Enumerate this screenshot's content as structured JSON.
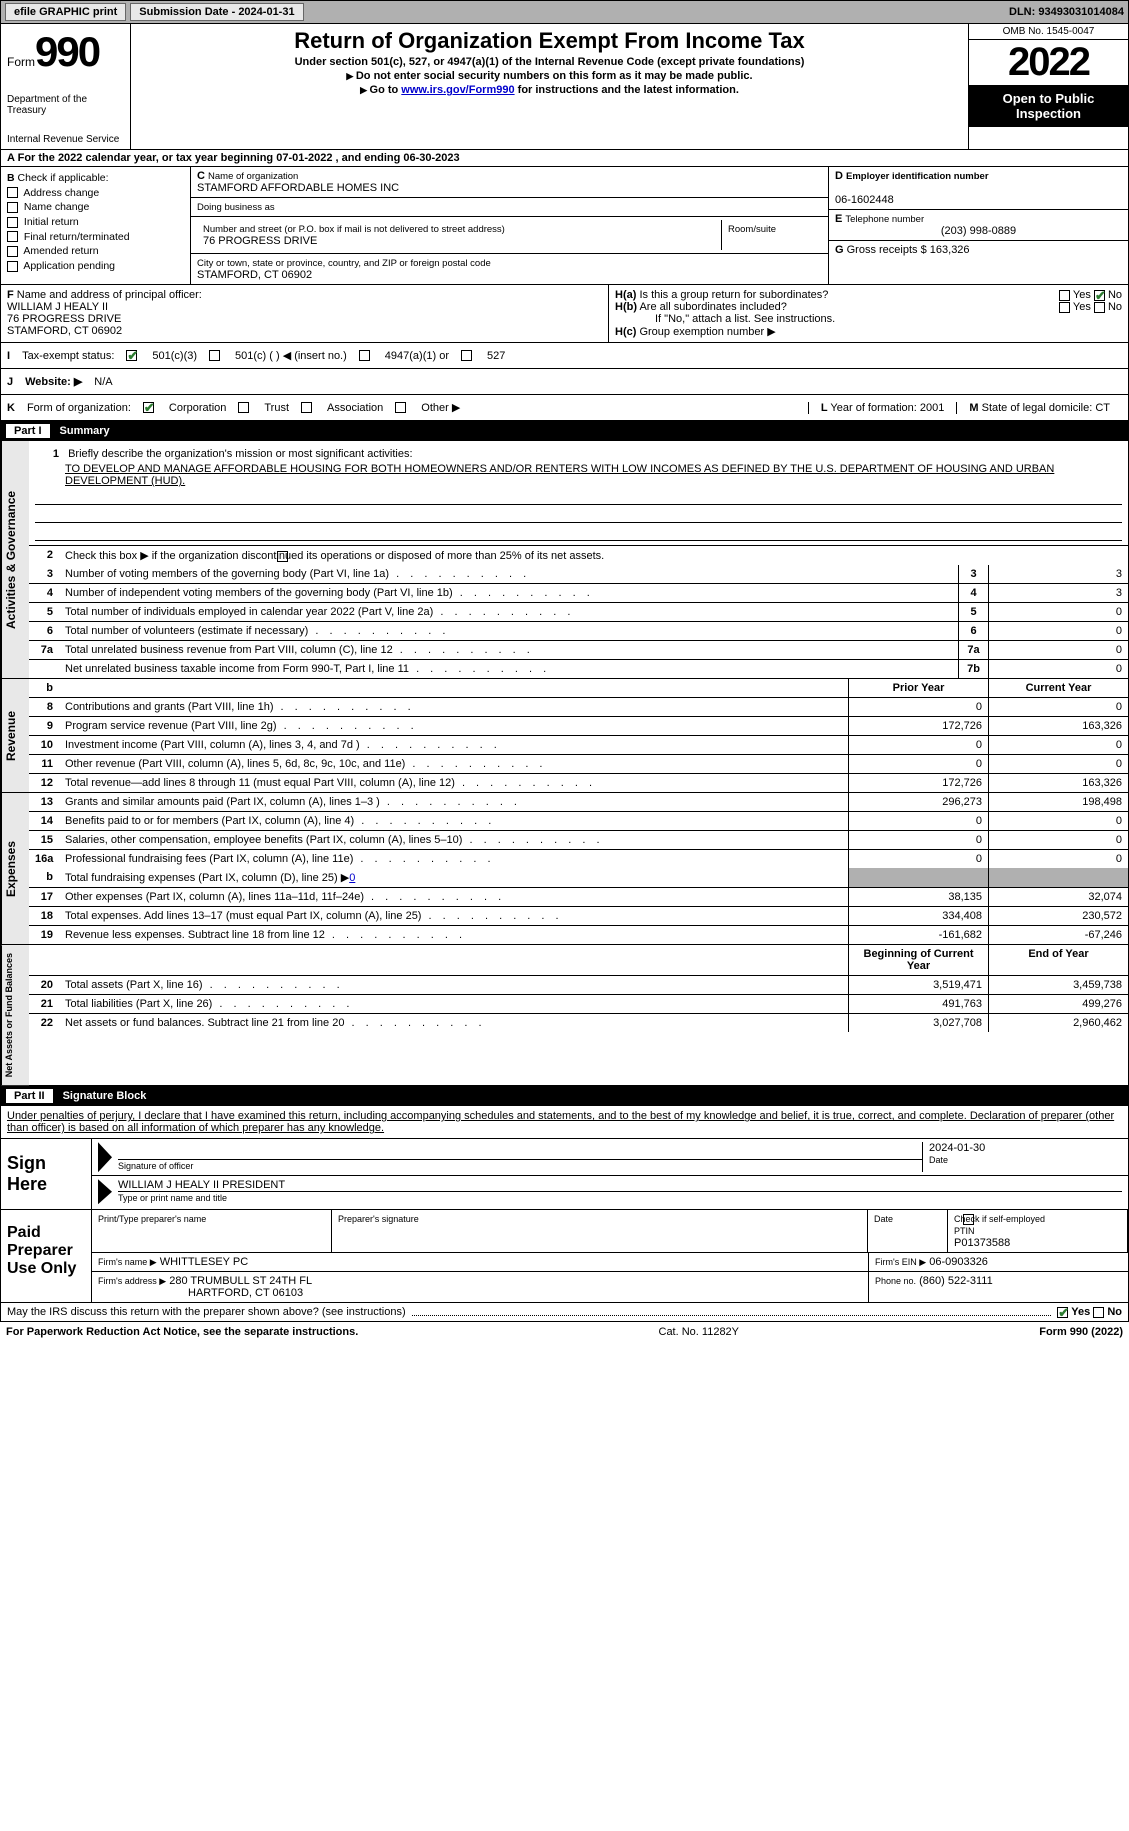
{
  "topbar": {
    "efile": "efile GRAPHIC print",
    "submission": "Submission Date - 2024-01-31",
    "dln": "DLN: 93493031014084"
  },
  "header": {
    "form_word": "Form",
    "form_num": "990",
    "dept": "Department of the Treasury",
    "irs": "Internal Revenue Service",
    "title": "Return of Organization Exempt From Income Tax",
    "sub1": "Under section 501(c), 527, or 4947(a)(1) of the Internal Revenue Code (except private foundations)",
    "sub2": "Do not enter social security numbers on this form as it may be made public.",
    "sub3_pre": "Go to ",
    "sub3_link": "www.irs.gov/Form990",
    "sub3_post": " for instructions and the latest information.",
    "omb": "OMB No. 1545-0047",
    "year": "2022",
    "open": "Open to Public Inspection"
  },
  "rowA": {
    "a": "A",
    "text": "For the 2022 calendar year, or tax year beginning 07-01-2022     , and ending 06-30-2023"
  },
  "secB": {
    "b": "B",
    "check_label": "Check if applicable:",
    "items": [
      "Address change",
      "Name change",
      "Initial return",
      "Final return/terminated",
      "Amended return",
      "Application pending"
    ],
    "c": "C",
    "name_lbl": "Name of organization",
    "name_val": "STAMFORD AFFORDABLE HOMES INC",
    "dba_lbl": "Doing business as",
    "dba_val": "",
    "street_lbl": "Number and street (or P.O. box if mail is not delivered to street address)",
    "street_val": "76 PROGRESS DRIVE",
    "room_lbl": "Room/suite",
    "city_lbl": "City or town, state or province, country, and ZIP or foreign postal code",
    "city_val": "STAMFORD, CT  06902",
    "d": "D",
    "ein_lbl": "Employer identification number",
    "ein_val": "06-1602448",
    "e": "E",
    "tel_lbl": "Telephone number",
    "tel_val": "(203) 998-0889",
    "g": "G",
    "gross_lbl": "Gross receipts $",
    "gross_val": "163,326"
  },
  "secF": {
    "f": "F",
    "officer_lbl": "Name and address of principal officer:",
    "officer_name": "WILLIAM J HEALY II",
    "officer_addr1": "76 PROGRESS DRIVE",
    "officer_addr2": "STAMFORD, CT  06902",
    "ha": "H(a)",
    "ha_text": "Is this a group return for subordinates?",
    "hb": "H(b)",
    "hb_text": "Are all subordinates included?",
    "hb_note": "If \"No,\" attach a list. See instructions.",
    "hc": "H(c)",
    "hc_text": "Group exemption number ▶",
    "yes": "Yes",
    "no": "No"
  },
  "lineI": {
    "i": "I",
    "label": "Tax-exempt status:",
    "o1": "501(c)(3)",
    "o2": "501(c) (  ) ◀ (insert no.)",
    "o3": "4947(a)(1) or",
    "o4": "527"
  },
  "lineJ": {
    "j": "J",
    "label": "Website: ▶",
    "val": "N/A"
  },
  "lineK": {
    "k": "K",
    "label": "Form of organization:",
    "o1": "Corporation",
    "o2": "Trust",
    "o3": "Association",
    "o4": "Other ▶",
    "l": "L",
    "l_text": "Year of formation: 2001",
    "m": "M",
    "m_text": "State of legal domicile: CT"
  },
  "part1": {
    "num": "Part I",
    "title": "Summary"
  },
  "tabs": {
    "gov": "Activities & Governance",
    "rev": "Revenue",
    "exp": "Expenses",
    "net": "Net Assets or Fund Balances"
  },
  "s1": {
    "num": "1",
    "lbl": "Briefly describe the organization's mission or most significant activities:",
    "text": "TO DEVELOP AND MANAGE AFFORDABLE HOUSING FOR BOTH HOMEOWNERS AND/OR RENTERS WITH LOW INCOMES AS DEFINED BY THE U.S. DEPARTMENT OF HOUSING AND URBAN DEVELOPMENT (HUD)."
  },
  "s2": {
    "num": "2",
    "lbl": "Check this box ▶       if the organization discontinued its operations or disposed of more than 25% of its net assets."
  },
  "govRows": [
    {
      "n": "3",
      "d": "Number of voting members of the governing body (Part VI, line 1a)",
      "b": "3",
      "v": "3"
    },
    {
      "n": "4",
      "d": "Number of independent voting members of the governing body (Part VI, line 1b)",
      "b": "4",
      "v": "3"
    },
    {
      "n": "5",
      "d": "Total number of individuals employed in calendar year 2022 (Part V, line 2a)",
      "b": "5",
      "v": "0"
    },
    {
      "n": "6",
      "d": "Total number of volunteers (estimate if necessary)",
      "b": "6",
      "v": "0"
    },
    {
      "n": "7a",
      "d": "Total unrelated business revenue from Part VIII, column (C), line 12",
      "b": "7a",
      "v": "0"
    },
    {
      "n": "",
      "d": "Net unrelated business taxable income from Form 990-T, Part I, line 11",
      "b": "7b",
      "v": "0"
    }
  ],
  "colHdr": {
    "b": "b",
    "prior": "Prior Year",
    "current": "Current Year",
    "begin": "Beginning of Current Year",
    "end": "End of Year"
  },
  "revRows": [
    {
      "n": "8",
      "d": "Contributions and grants (Part VIII, line 1h)",
      "p": "0",
      "c": "0"
    },
    {
      "n": "9",
      "d": "Program service revenue (Part VIII, line 2g)",
      "p": "172,726",
      "c": "163,326"
    },
    {
      "n": "10",
      "d": "Investment income (Part VIII, column (A), lines 3, 4, and 7d )",
      "p": "0",
      "c": "0"
    },
    {
      "n": "11",
      "d": "Other revenue (Part VIII, column (A), lines 5, 6d, 8c, 9c, 10c, and 11e)",
      "p": "0",
      "c": "0"
    },
    {
      "n": "12",
      "d": "Total revenue—add lines 8 through 11 (must equal Part VIII, column (A), line 12)",
      "p": "172,726",
      "c": "163,326"
    }
  ],
  "expRows": [
    {
      "n": "13",
      "d": "Grants and similar amounts paid (Part IX, column (A), lines 1–3 )",
      "p": "296,273",
      "c": "198,498"
    },
    {
      "n": "14",
      "d": "Benefits paid to or for members (Part IX, column (A), line 4)",
      "p": "0",
      "c": "0"
    },
    {
      "n": "15",
      "d": "Salaries, other compensation, employee benefits (Part IX, column (A), lines 5–10)",
      "p": "0",
      "c": "0"
    },
    {
      "n": "16a",
      "d": "Professional fundraising fees (Part IX, column (A), line 11e)",
      "p": "0",
      "c": "0"
    }
  ],
  "exp16b": {
    "n": "b",
    "d": "Total fundraising expenses (Part IX, column (D), line 25) ▶",
    "v": "0"
  },
  "expRows2": [
    {
      "n": "17",
      "d": "Other expenses (Part IX, column (A), lines 11a–11d, 11f–24e)",
      "p": "38,135",
      "c": "32,074"
    },
    {
      "n": "18",
      "d": "Total expenses. Add lines 13–17 (must equal Part IX, column (A), line 25)",
      "p": "334,408",
      "c": "230,572"
    },
    {
      "n": "19",
      "d": "Revenue less expenses. Subtract line 18 from line 12",
      "p": "-161,682",
      "c": "-67,246"
    }
  ],
  "netRows": [
    {
      "n": "20",
      "d": "Total assets (Part X, line 16)",
      "p": "3,519,471",
      "c": "3,459,738"
    },
    {
      "n": "21",
      "d": "Total liabilities (Part X, line 26)",
      "p": "491,763",
      "c": "499,276"
    },
    {
      "n": "22",
      "d": "Net assets or fund balances. Subtract line 21 from line 20",
      "p": "3,027,708",
      "c": "2,960,462"
    }
  ],
  "part2": {
    "num": "Part II",
    "title": "Signature Block"
  },
  "penalties": "Under penalties of perjury, I declare that I have examined this return, including accompanying schedules and statements, and to the best of my knowledge and belief, it is true, correct, and complete. Declaration of preparer (other than officer) is based on all information of which preparer has any knowledge.",
  "sign": {
    "here": "Sign Here",
    "sig_lbl": "Signature of officer",
    "date_lbl": "Date",
    "date_val": "2024-01-30",
    "name_val": "WILLIAM J HEALY II  PRESIDENT",
    "name_lbl": "Type or print name and title"
  },
  "prep": {
    "label": "Paid Preparer Use Only",
    "h1": "Print/Type preparer's name",
    "h2": "Preparer's signature",
    "h3": "Date",
    "h4a": "Check         if self-employed",
    "h4b": "PTIN",
    "ptin": "P01373588",
    "firm_lbl": "Firm's name    ▶",
    "firm_val": "WHITTLESEY PC",
    "ein_lbl": "Firm's EIN ▶",
    "ein_val": "06-0903326",
    "addr_lbl": "Firm's address ▶",
    "addr1": "280 TRUMBULL ST 24TH FL",
    "addr2": "HARTFORD, CT  06103",
    "phone_lbl": "Phone no.",
    "phone_val": "(860) 522-3111"
  },
  "footer": {
    "q": "May the IRS discuss this return with the preparer shown above? (see instructions)",
    "yes": "Yes",
    "no": "No"
  },
  "paperwork": {
    "left": "For Paperwork Reduction Act Notice, see the separate instructions.",
    "mid": "Cat. No. 11282Y",
    "right": "Form 990 (2022)"
  }
}
